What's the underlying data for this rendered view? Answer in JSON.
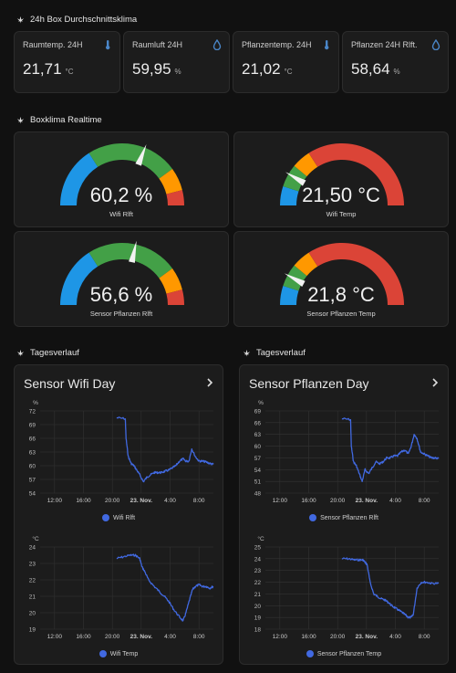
{
  "summary": {
    "title": "24h Box Durchschnittsklima",
    "cards": [
      {
        "name": "Raumtemp. 24H",
        "value": "21,71",
        "unit": "°C",
        "icon": "thermometer-icon"
      },
      {
        "name": "Raumluft 24H",
        "value": "59,95",
        "unit": "%",
        "icon": "water-drop-icon"
      },
      {
        "name": "Pflanzentemp. 24H",
        "value": "21,02",
        "unit": "°C",
        "icon": "thermometer-icon"
      },
      {
        "name": "Pflanzen 24H Rlft.",
        "value": "58,64",
        "unit": "%",
        "icon": "water-drop-icon"
      }
    ]
  },
  "realtime": {
    "title": "Boxklima Realtime",
    "gauges": [
      {
        "value": "60,2 %",
        "name": "Wifi Rlft",
        "level": 0.62,
        "segments": [
          [
            "#1e96e6",
            0.32
          ],
          [
            "#43a047",
            0.8
          ],
          [
            "#ff9800",
            0.92
          ],
          [
            "#db4437",
            1.0
          ]
        ]
      },
      {
        "value": "21,50 °C",
        "name": "Wifi Temp",
        "level": 0.17,
        "segments": [
          [
            "#1e96e6",
            0.1
          ],
          [
            "#43a047",
            0.22
          ],
          [
            "#ff9800",
            0.32
          ],
          [
            "#db4437",
            1.0
          ]
        ]
      },
      {
        "value": "56,6 %",
        "name": "Sensor Pflanzen Rlft",
        "level": 0.57,
        "segments": [
          [
            "#1e96e6",
            0.32
          ],
          [
            "#43a047",
            0.8
          ],
          [
            "#ff9800",
            0.92
          ],
          [
            "#db4437",
            1.0
          ]
        ]
      },
      {
        "value": "21,8 °C",
        "name": "Sensor Pflanzen Temp",
        "level": 0.16,
        "segments": [
          [
            "#1e96e6",
            0.1
          ],
          [
            "#43a047",
            0.22
          ],
          [
            "#ff9800",
            0.32
          ],
          [
            "#db4437",
            1.0
          ]
        ]
      }
    ]
  },
  "history": [
    {
      "section_title": "Tagesverlauf",
      "card_title": "Sensor Wifi Day"
    },
    {
      "section_title": "Tagesverlauf",
      "card_title": "Sensor Pflanzen Day"
    }
  ],
  "colors": {
    "line": "#4169e1",
    "card": "#1c1c1c",
    "grid": "#333333"
  },
  "chart_data": [
    {
      "type": "line",
      "unit": "%",
      "yticks": [
        "72",
        "69",
        "66",
        "63",
        "60",
        "57",
        "54"
      ],
      "ylim": [
        54,
        72
      ],
      "xticks": [
        "12:00",
        "16:00",
        "20:00",
        "23. Nov.",
        "4:00",
        "8:00"
      ],
      "xlim": [
        10,
        34
      ],
      "series": [
        {
          "name": "Wifi Rlft",
          "x": [
            20.6,
            21.8,
            21.9,
            22.2,
            22.6,
            23.0,
            23.4,
            23.8,
            24.3,
            24.8,
            25.3,
            25.8,
            26.3,
            26.8,
            27.3,
            27.8,
            28.3,
            28.8,
            29.3,
            29.8,
            30.2,
            30.6,
            31.0,
            31.5,
            32.0,
            32.5,
            33.0,
            33.5,
            34.0
          ],
          "y": [
            70.5,
            70.3,
            66,
            62,
            60.5,
            60,
            59,
            58,
            56.5,
            57.5,
            58,
            58.5,
            58.5,
            58.5,
            58.8,
            59,
            59.5,
            60,
            61,
            61.5,
            61,
            61,
            63.7,
            62,
            61,
            61,
            60.8,
            60.5,
            60.3
          ]
        }
      ]
    },
    {
      "type": "line",
      "unit": "%",
      "yticks": [
        "69",
        "66",
        "63",
        "60",
        "57",
        "54",
        "51",
        "48"
      ],
      "ylim": [
        48,
        69
      ],
      "xticks": [
        "12:00",
        "16:00",
        "20:00",
        "23. Nov.",
        "4:00",
        "8:00"
      ],
      "xlim": [
        10,
        34
      ],
      "series": [
        {
          "name": "Sensor Pflanzen Rlft",
          "x": [
            20.6,
            21.8,
            21.9,
            22.2,
            22.6,
            23.0,
            23.4,
            23.8,
            24.3,
            24.8,
            25.3,
            25.8,
            26.3,
            26.8,
            27.3,
            27.8,
            28.3,
            28.8,
            29.3,
            29.8,
            30.2,
            30.6,
            31.0,
            31.5,
            32.0,
            32.5,
            33.0,
            33.5,
            34.0
          ],
          "y": [
            67,
            66.8,
            60,
            56,
            55,
            53,
            51,
            54,
            53,
            54.5,
            56,
            55.5,
            56,
            57,
            57,
            57.5,
            57.5,
            58.5,
            59,
            58,
            60,
            63,
            62,
            58.5,
            58,
            57.5,
            57,
            57,
            56.8
          ]
        }
      ]
    },
    {
      "type": "line",
      "unit": "°C",
      "yticks": [
        "24",
        "23",
        "22",
        "21",
        "20",
        "19"
      ],
      "ylim": [
        19,
        24
      ],
      "xticks": [
        "12:00",
        "16:00",
        "20:00",
        "23. Nov.",
        "4:00",
        "8:00"
      ],
      "xlim": [
        10,
        34
      ],
      "series": [
        {
          "name": "Wifi Temp",
          "x": [
            20.6,
            21.5,
            22.5,
            23.2,
            23.8,
            24.1,
            24.5,
            25.0,
            25.8,
            26.5,
            27.2,
            27.8,
            28.5,
            29.2,
            29.8,
            30.2,
            30.7,
            31.1,
            31.5,
            32.0,
            32.5,
            33.0,
            33.5,
            34.0
          ],
          "y": [
            23.3,
            23.4,
            23.5,
            23.5,
            23.3,
            22.8,
            22.5,
            22.0,
            21.6,
            21.3,
            21.0,
            20.7,
            20.2,
            19.8,
            19.5,
            20.0,
            20.8,
            21.4,
            21.6,
            21.7,
            21.6,
            21.6,
            21.5,
            21.6
          ]
        }
      ]
    },
    {
      "type": "line",
      "unit": "°C",
      "yticks": [
        "25",
        "24",
        "23",
        "22",
        "21",
        "20",
        "19",
        "18"
      ],
      "ylim": [
        18,
        25
      ],
      "xticks": [
        "12:00",
        "16:00",
        "20:00",
        "23. Nov.",
        "4:00",
        "8:00"
      ],
      "xlim": [
        10,
        34
      ],
      "series": [
        {
          "name": "Sensor Pflanzen Temp",
          "x": [
            20.6,
            21.5,
            22.3,
            23.0,
            23.5,
            23.8,
            24.1,
            24.5,
            25.0,
            25.5,
            26.0,
            26.5,
            27.0,
            27.5,
            28.0,
            28.5,
            29.0,
            29.4,
            29.8,
            30.2,
            30.5,
            31.0,
            31.6,
            32.3,
            33.0,
            34.0
          ],
          "y": [
            24.0,
            24.0,
            23.9,
            23.9,
            23.9,
            23.7,
            23.5,
            22.0,
            21.0,
            20.8,
            20.6,
            20.5,
            20.3,
            20.0,
            19.8,
            19.6,
            19.4,
            19.2,
            19.0,
            19.0,
            19.3,
            21.5,
            22.0,
            22.0,
            21.9,
            21.9
          ]
        }
      ]
    }
  ]
}
